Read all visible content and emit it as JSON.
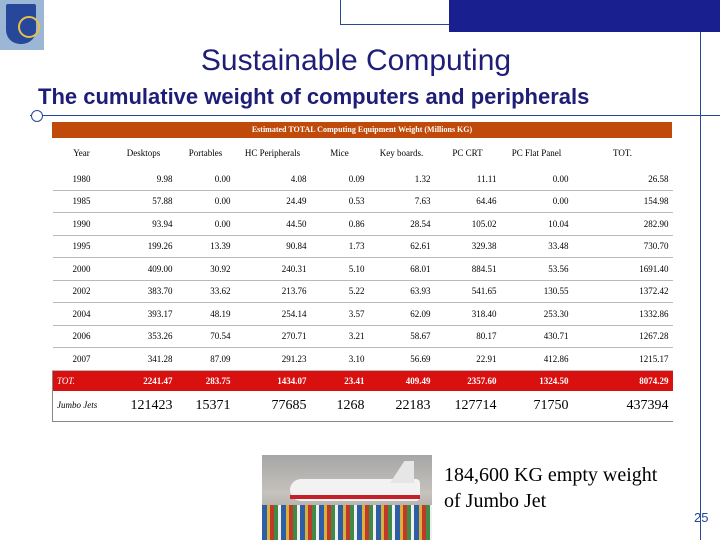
{
  "title": "Sustainable Computing",
  "subtitle": "The cumulative weight of computers and peripherals",
  "table": {
    "caption": "Estimated TOTAL Computing Equipment Weight (Millions KG)",
    "headers": [
      "Year",
      "Desktops",
      "Portables",
      "HC Peripherals",
      "Mice",
      "Key boards.",
      "PC CRT",
      "PC Flat Panel",
      "TOT."
    ],
    "rows": [
      [
        "1980",
        "9.98",
        "0.00",
        "4.08",
        "0.09",
        "1.32",
        "11.11",
        "0.00",
        "26.58"
      ],
      [
        "1985",
        "57.88",
        "0.00",
        "24.49",
        "0.53",
        "7.63",
        "64.46",
        "0.00",
        "154.98"
      ],
      [
        "1990",
        "93.94",
        "0.00",
        "44.50",
        "0.86",
        "28.54",
        "105.02",
        "10.04",
        "282.90"
      ],
      [
        "1995",
        "199.26",
        "13.39",
        "90.84",
        "1.73",
        "62.61",
        "329.38",
        "33.48",
        "730.70"
      ],
      [
        "2000",
        "409.00",
        "30.92",
        "240.31",
        "5.10",
        "68.01",
        "884.51",
        "53.56",
        "1691.40"
      ],
      [
        "2002",
        "383.70",
        "33.62",
        "213.76",
        "5.22",
        "63.93",
        "541.65",
        "130.55",
        "1372.42"
      ],
      [
        "2004",
        "393.17",
        "48.19",
        "254.14",
        "3.57",
        "62.09",
        "318.40",
        "253.30",
        "1332.86"
      ],
      [
        "2006",
        "353.26",
        "70.54",
        "270.71",
        "3.21",
        "58.67",
        "80.17",
        "430.71",
        "1267.28"
      ],
      [
        "2007",
        "341.28",
        "87.09",
        "291.23",
        "3.10",
        "56.69",
        "22.91",
        "412.86",
        "1215.17"
      ]
    ],
    "total": [
      "TOT.",
      "2241.47",
      "283.75",
      "1434.07",
      "23.41",
      "409.49",
      "2357.60",
      "1324.50",
      "8074.29"
    ],
    "jumbo": [
      "Jumbo Jets",
      "121423",
      "15371",
      "77685",
      "1268",
      "22183",
      "127714",
      "71750",
      "437394"
    ]
  },
  "jumbo_note_line1": "184,600 KG empty weight",
  "jumbo_note_line2": "of Jumbo Jet",
  "page_number": "25",
  "colors": {
    "title": "#1e1e78",
    "table_header": "#c04a0a",
    "total_row": "#d81010",
    "accent": "#1a1f8f"
  }
}
